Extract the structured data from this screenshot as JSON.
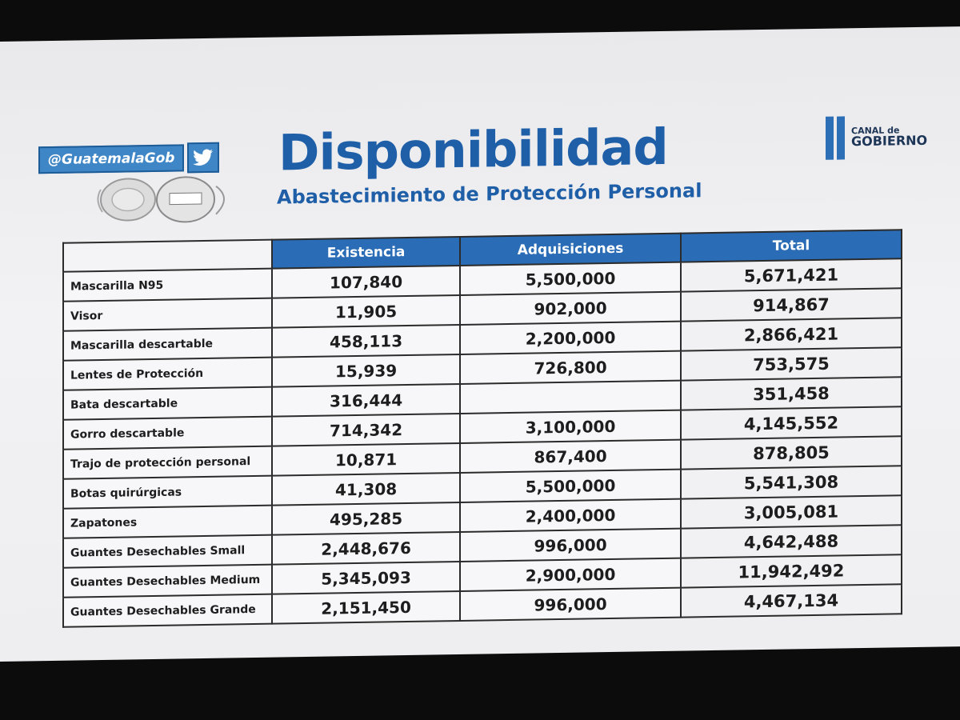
{
  "header": {
    "handle": "@GuatemalaGob",
    "title": "Disponibilidad",
    "subtitle": "Abastecimiento de Protección Personal",
    "logo_line1": "CANAL de",
    "logo_line2": "GOBIERNO"
  },
  "table": {
    "columns": [
      "Existencia",
      "Adquisiciones",
      "Total"
    ],
    "rows": [
      {
        "label": "Mascarilla N95",
        "existencia": "107,840",
        "adquisiciones": "5,500,000",
        "total": "5,671,421"
      },
      {
        "label": "Visor",
        "existencia": "11,905",
        "adquisiciones": "902,000",
        "total": "914,867"
      },
      {
        "label": "Mascarilla descartable",
        "existencia": "458,113",
        "adquisiciones": "2,200,000",
        "total": "2,866,421"
      },
      {
        "label": "Lentes de Protección",
        "existencia": "15,939",
        "adquisiciones": "726,800",
        "total": "753,575"
      },
      {
        "label": "Bata descartable",
        "existencia": "316,444",
        "adquisiciones": "",
        "total": "351,458"
      },
      {
        "label": "Gorro descartable",
        "existencia": "714,342",
        "adquisiciones": "3,100,000",
        "total": "4,145,552"
      },
      {
        "label": "Trajo de protección personal",
        "existencia": "10,871",
        "adquisiciones": "867,400",
        "total": "878,805"
      },
      {
        "label": "Botas quirúrgicas",
        "existencia": "41,308",
        "adquisiciones": "5,500,000",
        "total": "5,541,308"
      },
      {
        "label": "Zapatones",
        "existencia": "495,285",
        "adquisiciones": "2,400,000",
        "total": "3,005,081"
      },
      {
        "label": "Guantes Desechables Small",
        "existencia": "2,448,676",
        "adquisiciones": "996,000",
        "total": "4,642,488"
      },
      {
        "label": "Guantes Desechables Medium",
        "existencia": "5,345,093",
        "adquisiciones": "2,900,000",
        "total": "11,942,492"
      },
      {
        "label": "Guantes Desechables Grande",
        "existencia": "2,151,450",
        "adquisiciones": "996,000",
        "total": "4,467,134"
      }
    ]
  },
  "icons": {
    "social": "twitter-bird-icon",
    "illustration": "n95-masks-illustration",
    "brand": "canal-gobierno-logo"
  },
  "colors": {
    "brand_blue": "#1f5fa8",
    "header_blue": "#2a6cb5",
    "screen_bg": "#eeeef0",
    "room_bg": "#0c0c0c"
  }
}
